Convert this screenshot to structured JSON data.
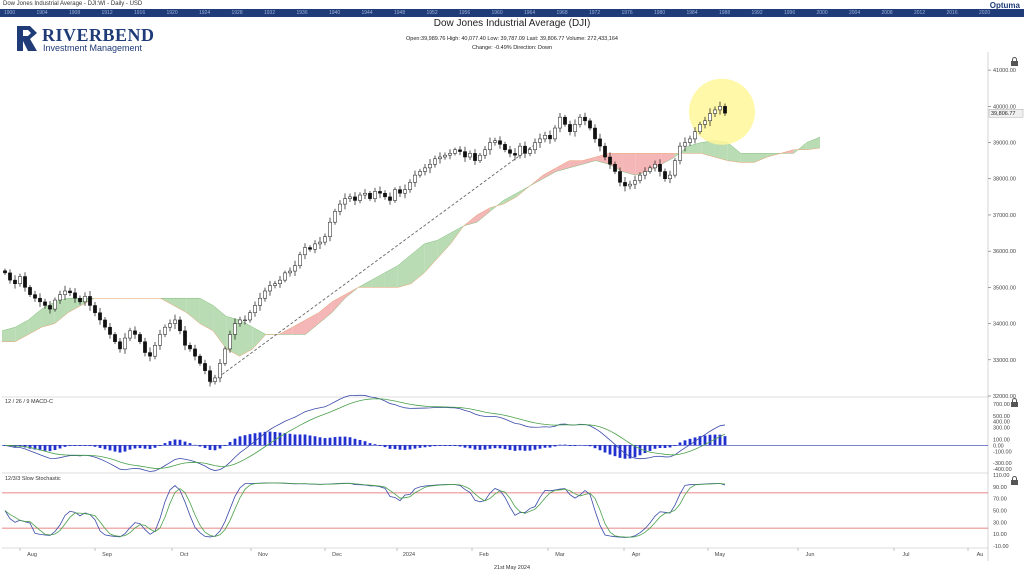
{
  "header": {
    "instrument_info": "Dow Jones Industrial Average - DJI:WI - Daily - USD",
    "title": "Dow Jones Industrial Average (DJI)",
    "ohlc_line": "Open:39,989.76   High: 40,077.40   Low: 39,787.09   Last: 39,806.77   Volume: 272,433,164",
    "change_line": "Change: -0.49%   Direction: Down",
    "brand": "Optuma",
    "logo_name": "RIVERBEND",
    "logo_sub": "Investment Management"
  },
  "year_strip": [
    "1900",
    "1904",
    "1908",
    "1912",
    "1916",
    "1920",
    "1924",
    "1928",
    "1932",
    "1936",
    "1940",
    "1944",
    "1948",
    "1952",
    "1956",
    "1960",
    "1964",
    "1968",
    "1972",
    "1976",
    "1980",
    "1984",
    "1988",
    "1992",
    "1996",
    "2000",
    "2004",
    "2008",
    "2012",
    "2016",
    "2020"
  ],
  "footer_date": "21st May 2024",
  "price_tag": "39,806.77",
  "colors": {
    "cloud_bull": "#b9dcb5",
    "cloud_bear": "#f4b6b6",
    "macd_line": "#3a4aa8",
    "signal_line": "#4aa04a",
    "histogram": "#2230d0",
    "stoch_k": "#3a4aa8",
    "stoch_d": "#4aa04a",
    "stoch_band": "#e06060",
    "highlight": "#fff799",
    "trendline": "#666666",
    "axis_text": "#444444"
  },
  "chart_data": [
    {
      "type": "candlestick",
      "x_labels": [
        "Aug",
        "Sep",
        "Oct",
        "Nov",
        "Dec",
        "2024",
        "Feb",
        "Mar",
        "Apr",
        "May",
        "Jun",
        "Jul",
        "Au"
      ],
      "y_ticks": [
        32000,
        33000,
        34000,
        35000,
        36000,
        37000,
        38000,
        39000,
        40000,
        41000
      ],
      "y_tick_labels": [
        "32000.00",
        "33000.00",
        "34000.00",
        "35000.00",
        "36000.00",
        "37000.00",
        "38000.00",
        "39000.00",
        "40000.00",
        "41000.00"
      ],
      "ylim": [
        32000,
        41500
      ],
      "closes": [
        35400,
        35200,
        35100,
        35300,
        35000,
        34800,
        34700,
        34600,
        34500,
        34400,
        34650,
        34800,
        34900,
        34850,
        34700,
        34600,
        34750,
        34500,
        34300,
        34100,
        33900,
        33700,
        33500,
        33300,
        33600,
        33800,
        33700,
        33500,
        33200,
        33100,
        33400,
        33700,
        33900,
        34000,
        34100,
        33800,
        33400,
        33300,
        33100,
        32900,
        32700,
        32400,
        32500,
        32900,
        33300,
        33700,
        34000,
        34100,
        34100,
        34300,
        34500,
        34700,
        34900,
        35050,
        35100,
        35200,
        35400,
        35450,
        35600,
        35900,
        36100,
        36050,
        36200,
        36250,
        36400,
        36800,
        37100,
        37300,
        37450,
        37500,
        37400,
        37550,
        37600,
        37450,
        37650,
        37600,
        37500,
        37400,
        37700,
        37600,
        37700,
        37900,
        38100,
        38200,
        38300,
        38400,
        38550,
        38600,
        38650,
        38700,
        38800,
        38750,
        38600,
        38700,
        38500,
        38650,
        38800,
        39000,
        39050,
        38950,
        38800,
        38700,
        38650,
        38900,
        38700,
        38800,
        39000,
        39100,
        39200,
        39100,
        39400,
        39700,
        39500,
        39300,
        39500,
        39700,
        39600,
        39400,
        39100,
        38900,
        38600,
        38400,
        38200,
        37900,
        37800,
        37850,
        37950,
        38100,
        38200,
        38300,
        38400,
        38200,
        38000,
        38100,
        38500,
        38900,
        39000,
        39100,
        39300,
        39500,
        39600,
        39800,
        39900,
        40000,
        39810
      ],
      "cloud": {
        "span_a": [
          33800,
          33900,
          34100,
          34400,
          34600,
          34700,
          34700,
          34700,
          34700,
          34700,
          34700,
          34700,
          34700,
          34700,
          34700,
          34700,
          34500,
          34200,
          34100,
          33900,
          33700,
          33700,
          33700,
          33700,
          34000,
          34300,
          34700,
          35000,
          35200,
          35400,
          35600,
          35900,
          36200,
          36300,
          36500,
          36700,
          36800,
          37100,
          37400,
          37600,
          37800,
          38000,
          38200,
          38300,
          38400,
          38500,
          38400,
          38200,
          38100,
          38200,
          38400,
          38600,
          38900,
          39000,
          39050,
          39000,
          38700,
          38700,
          38700,
          38700,
          38700,
          39000,
          39150
        ],
        "span_b": [
          33500,
          33500,
          33700,
          33900,
          34000,
          34300,
          34500,
          34700,
          34700,
          34700,
          34700,
          34700,
          34700,
          34500,
          34300,
          34000,
          33800,
          33300,
          33100,
          33300,
          33700,
          33700,
          33900,
          34100,
          34300,
          34600,
          34800,
          35000,
          35000,
          35000,
          35000,
          35100,
          35400,
          35800,
          36200,
          36700,
          37000,
          37200,
          37300,
          37500,
          37800,
          38100,
          38300,
          38500,
          38500,
          38600,
          38700,
          38700,
          38700,
          38700,
          38700,
          38700,
          38700,
          38700,
          38600,
          38500,
          38450,
          38450,
          38600,
          38700,
          38800,
          38800,
          38850
        ]
      }
    },
    {
      "type": "line",
      "name": "12 / 26 / 9 MACD-C",
      "y_ticks": [
        700,
        500,
        400,
        300,
        100,
        0,
        -100,
        -300,
        -400
      ],
      "y_tick_labels": [
        "700.00",
        "500.00",
        "400.00",
        "300.00",
        "100.00",
        "0.00",
        "-100.00",
        "-300.00",
        "-400.00"
      ],
      "ylim": [
        -450,
        800
      ]
    },
    {
      "type": "line",
      "name": "12/3/3 Slow Stochastic",
      "y_ticks": [
        110,
        90,
        70,
        50,
        30,
        10,
        -10
      ],
      "y_tick_labels": [
        "110.00",
        "90.00",
        "70.00",
        "50.00",
        "30.00",
        "10.00",
        "-10.00"
      ],
      "ylim": [
        -12,
        112
      ],
      "bands": [
        80,
        20
      ]
    }
  ]
}
